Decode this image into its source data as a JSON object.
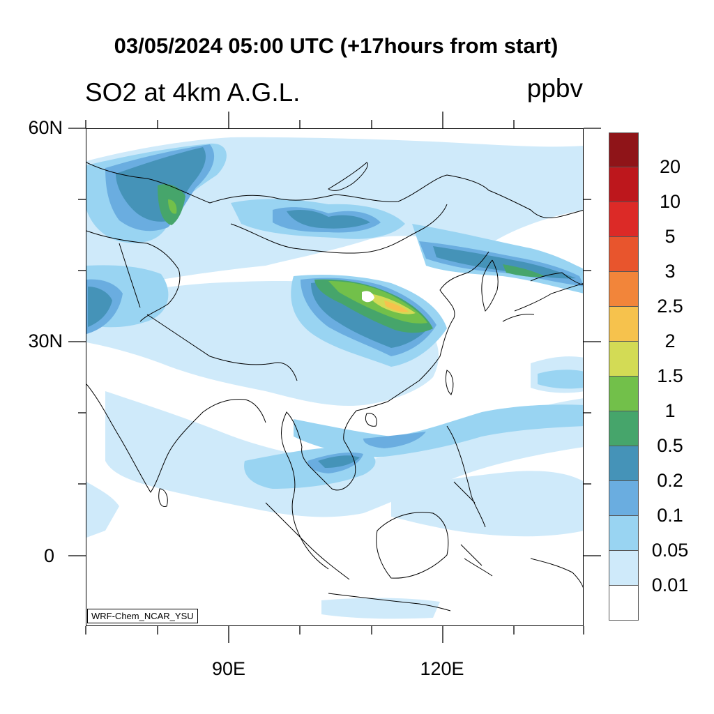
{
  "title": "03/05/2024 05:00 UTC (+17hours from start)",
  "variable": "SO2 at 4km A.G.L.",
  "units": "ppbv",
  "model_credit": "WRF-Chem_NCAR_YSU",
  "latitude_labels": [
    "60N",
    "30N",
    "0"
  ],
  "longitude_labels": [
    "90E",
    "120E"
  ],
  "colorbar": {
    "labels": [
      "20",
      "10",
      "5",
      "3",
      "2.5",
      "2",
      "1.5",
      "1",
      "0.5",
      "0.2",
      "0.1",
      "0.05",
      "0.01"
    ],
    "colors": [
      "#8f1418",
      "#bd171c",
      "#dc2a27",
      "#e8552d",
      "#f2853a",
      "#f6c24d",
      "#d3db55",
      "#72c04a",
      "#46a56b",
      "#4593b8",
      "#6aade0",
      "#99d4f2",
      "#cfeafa",
      "#ffffff"
    ]
  }
}
